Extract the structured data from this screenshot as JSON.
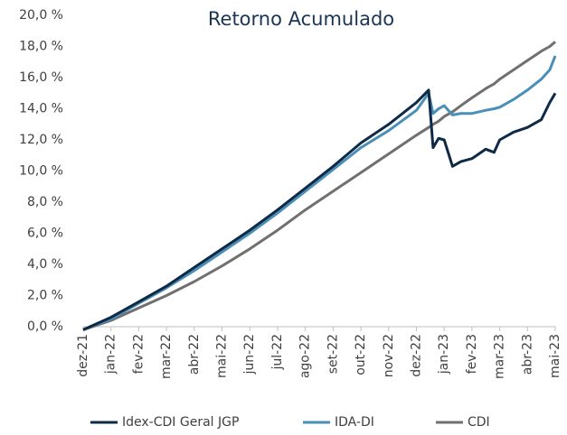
{
  "chart_data": {
    "type": "line",
    "title": "Retorno Acumulado",
    "x": [
      0,
      1,
      2,
      3,
      4,
      5,
      6,
      7,
      8,
      9,
      10,
      11,
      12,
      12.44,
      12.6,
      12.8,
      13,
      13.3,
      13.6,
      14,
      14.5,
      14.8,
      15,
      15.5,
      16,
      16.5,
      16.8,
      17
    ],
    "xlim": [
      0,
      17
    ],
    "xticks": [
      {
        "value": 0,
        "label": "dez-21"
      },
      {
        "value": 1,
        "label": "jan-22"
      },
      {
        "value": 2,
        "label": "fev-22"
      },
      {
        "value": 3,
        "label": "mar-22"
      },
      {
        "value": 4,
        "label": "abr-22"
      },
      {
        "value": 5,
        "label": "mai-22"
      },
      {
        "value": 6,
        "label": "jun-22"
      },
      {
        "value": 7,
        "label": "jul-22"
      },
      {
        "value": 8,
        "label": "ago-22"
      },
      {
        "value": 9,
        "label": "set-22"
      },
      {
        "value": 10,
        "label": "out-22"
      },
      {
        "value": 11,
        "label": "nov-22"
      },
      {
        "value": 12,
        "label": "dez-22"
      },
      {
        "value": 13,
        "label": "jan-23"
      },
      {
        "value": 14,
        "label": "fev-23"
      },
      {
        "value": 15,
        "label": "mar-23"
      },
      {
        "value": 16,
        "label": "abr-23"
      },
      {
        "value": 17,
        "label": "mai-23"
      }
    ],
    "ylim": [
      0,
      20
    ],
    "yticks": [
      {
        "value": 0,
        "label": "0,0 %"
      },
      {
        "value": 2,
        "label": "2,0 %"
      },
      {
        "value": 4,
        "label": "4,0 %"
      },
      {
        "value": 6,
        "label": "6,0 %"
      },
      {
        "value": 8,
        "label": "8,0 %"
      },
      {
        "value": 10,
        "label": "10,0 %"
      },
      {
        "value": 12,
        "label": "12,0 %"
      },
      {
        "value": 14,
        "label": "14,0 %"
      },
      {
        "value": 16,
        "label": "16,0 %"
      },
      {
        "value": 18,
        "label": "18,0 %"
      },
      {
        "value": 20,
        "label": "20,0 %"
      }
    ],
    "series": [
      {
        "name": "Idex-CDI Geral JGP",
        "color": "#0e2a47",
        "values": [
          -0.2,
          0.6,
          1.6,
          2.6,
          3.8,
          5.0,
          6.2,
          7.5,
          8.9,
          10.3,
          11.8,
          13.0,
          14.4,
          15.2,
          11.5,
          12.1,
          12.0,
          10.3,
          10.6,
          10.8,
          11.4,
          11.2,
          12.0,
          12.5,
          12.8,
          13.3,
          14.4,
          15.0
        ]
      },
      {
        "name": "IDA-DI",
        "color": "#4a8fb8",
        "values": [
          -0.2,
          0.5,
          1.5,
          2.5,
          3.6,
          4.8,
          6.0,
          7.3,
          8.7,
          10.1,
          11.5,
          12.6,
          13.9,
          15.0,
          13.7,
          14.0,
          14.2,
          13.6,
          13.7,
          13.7,
          13.9,
          14.0,
          14.1,
          14.6,
          15.2,
          15.9,
          16.5,
          17.4
        ]
      },
      {
        "name": "CDI",
        "color": "#707070",
        "values": [
          -0.2,
          0.4,
          1.2,
          2.0,
          2.9,
          3.9,
          5.0,
          6.2,
          7.5,
          8.7,
          9.9,
          11.1,
          12.3,
          12.8,
          13.0,
          13.2,
          13.5,
          13.8,
          14.2,
          14.7,
          15.3,
          15.6,
          15.9,
          16.5,
          17.1,
          17.7,
          18.0,
          18.3
        ]
      }
    ]
  }
}
